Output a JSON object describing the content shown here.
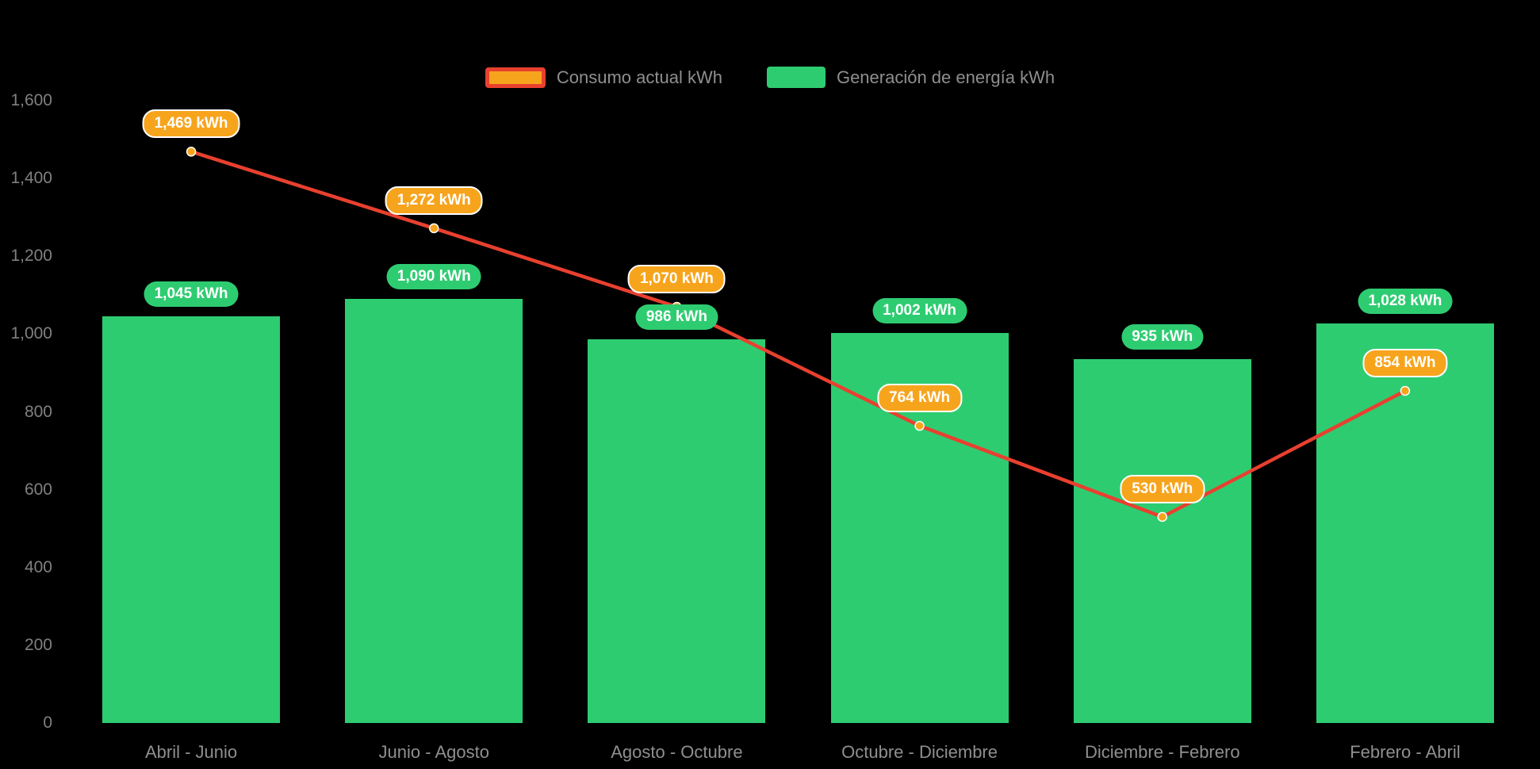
{
  "colors": {
    "background": "#000000",
    "bar": "#2ecc71",
    "line": "#e8402f",
    "marker": "#f7a41d",
    "badge_green": "#2ecc71",
    "badge_orange": "#f7a41d",
    "badge_orange_border": "#ffffff",
    "axis_text": "#808080",
    "category_text": "#8f8f8f"
  },
  "legend": {
    "items": [
      {
        "label": "Consumo actual kWh",
        "series": "consumo",
        "swatch": "line"
      },
      {
        "label": "Generación de energía kWh",
        "series": "generacion",
        "swatch": "bar"
      }
    ]
  },
  "chart_data": {
    "type": "bar+line",
    "title": "",
    "xlabel": "",
    "ylabel": "",
    "legend_position": "top",
    "grid": false,
    "ylim": [
      0,
      1600
    ],
    "categories": [
      "Abril - Junio",
      "Junio - Agosto",
      "Agosto - Octubre",
      "Octubre - Diciembre",
      "Diciembre - Febrero",
      "Febrero - Abril"
    ],
    "y_ticks": {
      "values": [
        0,
        200,
        400,
        600,
        800,
        1000,
        1200,
        1400,
        1600
      ],
      "labels": [
        "0",
        "200",
        "400",
        "600",
        "800",
        "1,000",
        "1,200",
        "1,400",
        "1,600"
      ]
    },
    "series": [
      {
        "name": "Consumo actual kWh",
        "type": "line",
        "color": "#e8402f",
        "marker_color": "#f7a41d",
        "values": [
          1469,
          1272,
          1070,
          764,
          530,
          854
        ],
        "labels": [
          "1,469 kWh",
          "1,272 kWh",
          "1,070 kWh",
          "764 kWh",
          "530 kWh",
          "854 kWh"
        ]
      },
      {
        "name": "Generación de energía kWh",
        "type": "bar",
        "color": "#2ecc71",
        "values": [
          1045,
          1090,
          986,
          1002,
          935,
          1028
        ],
        "labels": [
          "1,045 kWh",
          "1,090 kWh",
          "986 kWh",
          "1,002 kWh",
          "935 kWh",
          "1,028 kWh"
        ]
      }
    ]
  }
}
